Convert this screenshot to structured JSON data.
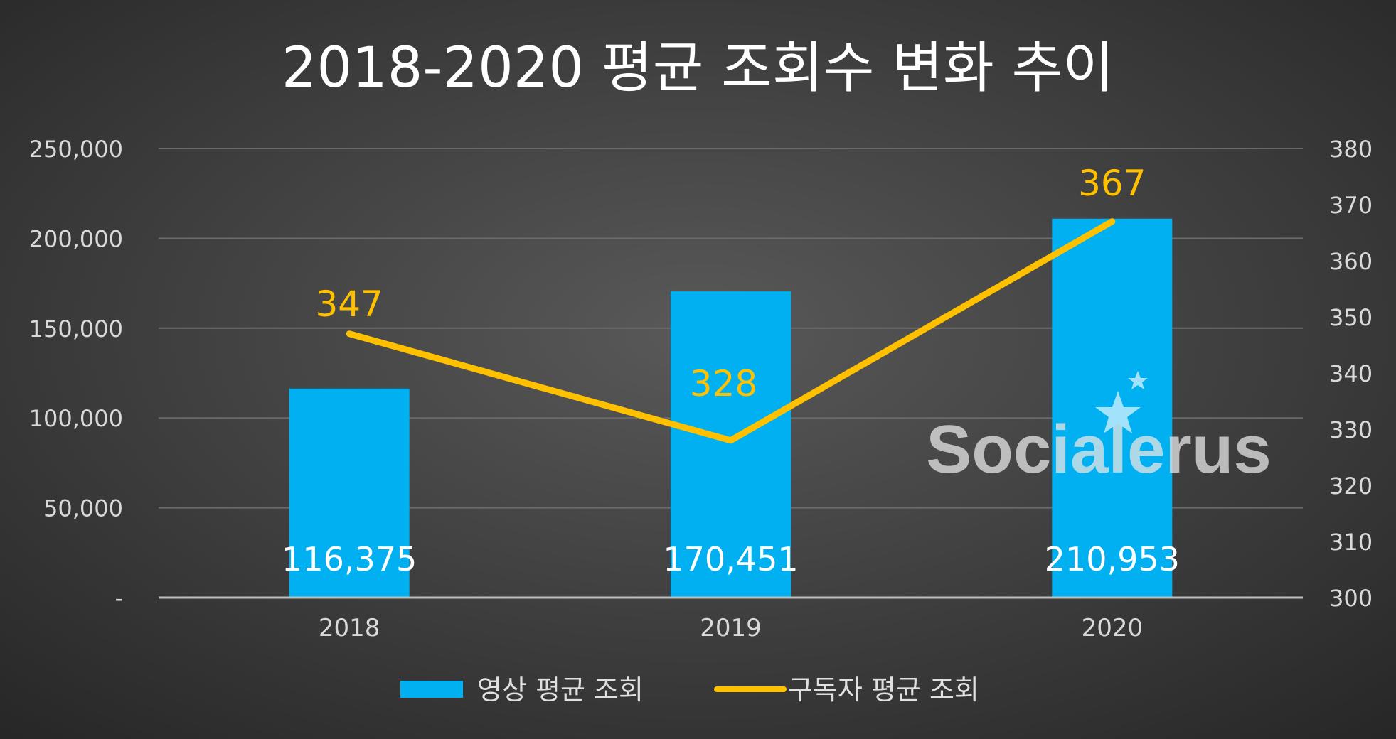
{
  "chart_data": {
    "type": "bar+line",
    "title": "2018-2020 평균 조회수 변화 추이",
    "categories": [
      "2018",
      "2019",
      "2020"
    ],
    "series": [
      {
        "name": "영상 평균 조회",
        "type": "bar",
        "axis": "left",
        "color": "#00b0f0",
        "values": [
          116375,
          170451,
          210953
        ],
        "labels": [
          "116,375",
          "170,451",
          "210,953"
        ]
      },
      {
        "name": "구독자 평균 조회",
        "type": "line",
        "axis": "right",
        "color": "#ffc000",
        "values": [
          347,
          328,
          367
        ],
        "labels": [
          "347",
          "328",
          "367"
        ]
      }
    ],
    "left_axis": {
      "ylim": [
        0,
        250000
      ],
      "ticks": [
        0,
        50000,
        100000,
        150000,
        200000,
        250000
      ],
      "tick_labels": [
        "-",
        "50,000",
        "100,000",
        "150,000",
        "200,000",
        "250,000"
      ]
    },
    "right_axis": {
      "ylim": [
        300,
        380
      ],
      "ticks": [
        300,
        310,
        320,
        330,
        340,
        350,
        360,
        370,
        380
      ],
      "tick_labels": [
        "300",
        "310",
        "320",
        "330",
        "340",
        "350",
        "360",
        "370",
        "380"
      ]
    },
    "grid": true,
    "legend_position": "bottom"
  },
  "watermark": "Socialerus"
}
